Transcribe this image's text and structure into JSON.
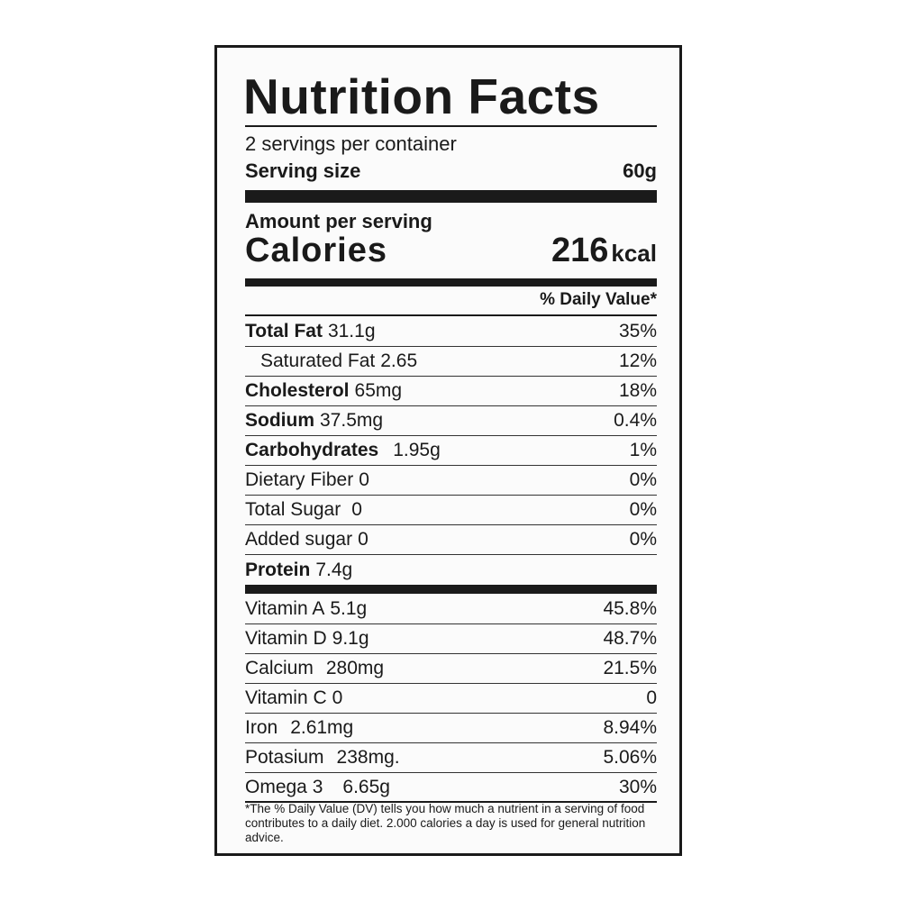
{
  "label": {
    "title": "Nutrition Facts",
    "servings": "2 servings per container",
    "serving_size": {
      "label": "Serving size",
      "value": "60g"
    },
    "amount_per_serving": "Amount per serving",
    "calories": {
      "label": "Calories",
      "value": "216",
      "unit": "kcal"
    },
    "daily_value_header": "% Daily Value*",
    "nutrients": [
      [
        "Total Fat",
        "31.1g",
        "35%"
      ],
      [
        "Saturated Fat",
        "2.65",
        "12%"
      ],
      [
        "Cholesterol",
        "65mg",
        "18%"
      ],
      [
        "Sodium",
        "37.5mg",
        "0.4%"
      ],
      [
        "Carbohydrates",
        "1.95g",
        "1%"
      ],
      [
        "Dietary Fiber",
        "0",
        "0%"
      ],
      [
        "Total Sugar",
        "0",
        "0%"
      ],
      [
        "Added sugar",
        "0",
        "0%"
      ],
      [
        "Protein",
        "7.4g"
      ]
    ],
    "vitamins": [
      [
        "Vitamin A",
        "5.1g",
        "45.8%"
      ],
      [
        "Vitamin D",
        "9.1g",
        "48.7%"
      ],
      [
        "Calcium",
        "280mg",
        "21.5%"
      ],
      [
        "Vitamin C",
        "0",
        "0"
      ],
      [
        "Iron",
        "2.61mg",
        "8.94%"
      ],
      [
        "Potasium",
        "238mg.",
        "5.06%"
      ],
      [
        "Omega 3",
        "6.65g",
        "30%"
      ]
    ],
    "footnote": "*The % Daily Value (DV) tells you how much a nutrient in a serving of food contributes to a daily diet. 2.000 calories a day is used for general nutrition advice."
  }
}
